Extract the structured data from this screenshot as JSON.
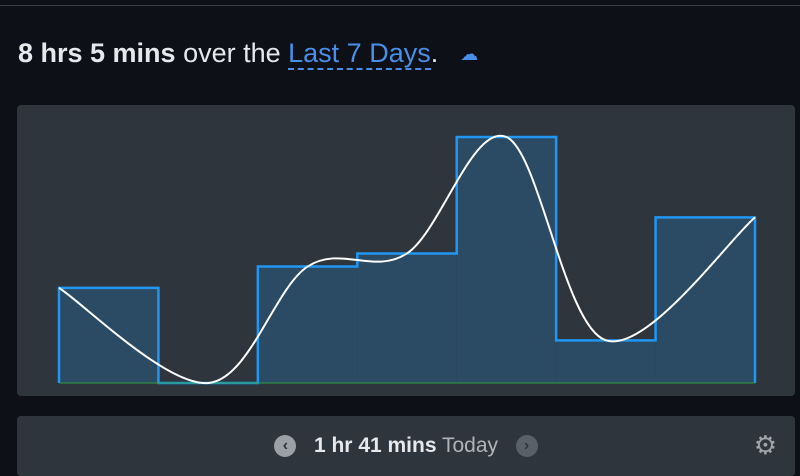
{
  "header": {
    "total": "8 hrs 5 mins",
    "middle": " over the ",
    "range": "Last 7 Days",
    "end": ".",
    "icon": "cloud-download-icon"
  },
  "chart_data": {
    "type": "bar",
    "series": [
      {
        "values": [
          58,
          0,
          71,
          79,
          150,
          26,
          101
        ]
      }
    ],
    "unit": "minutes",
    "colors": {
      "bar": "#2196f3",
      "fill": "#2b4a63",
      "curve": "#ffffff",
      "baseline": "#2ea043"
    }
  },
  "footer": {
    "total": "1 hr 41 mins",
    "label": " Today",
    "prev_icon": "chevron-left-icon",
    "next_icon": "chevron-right-icon",
    "settings_icon": "gear-icon"
  }
}
